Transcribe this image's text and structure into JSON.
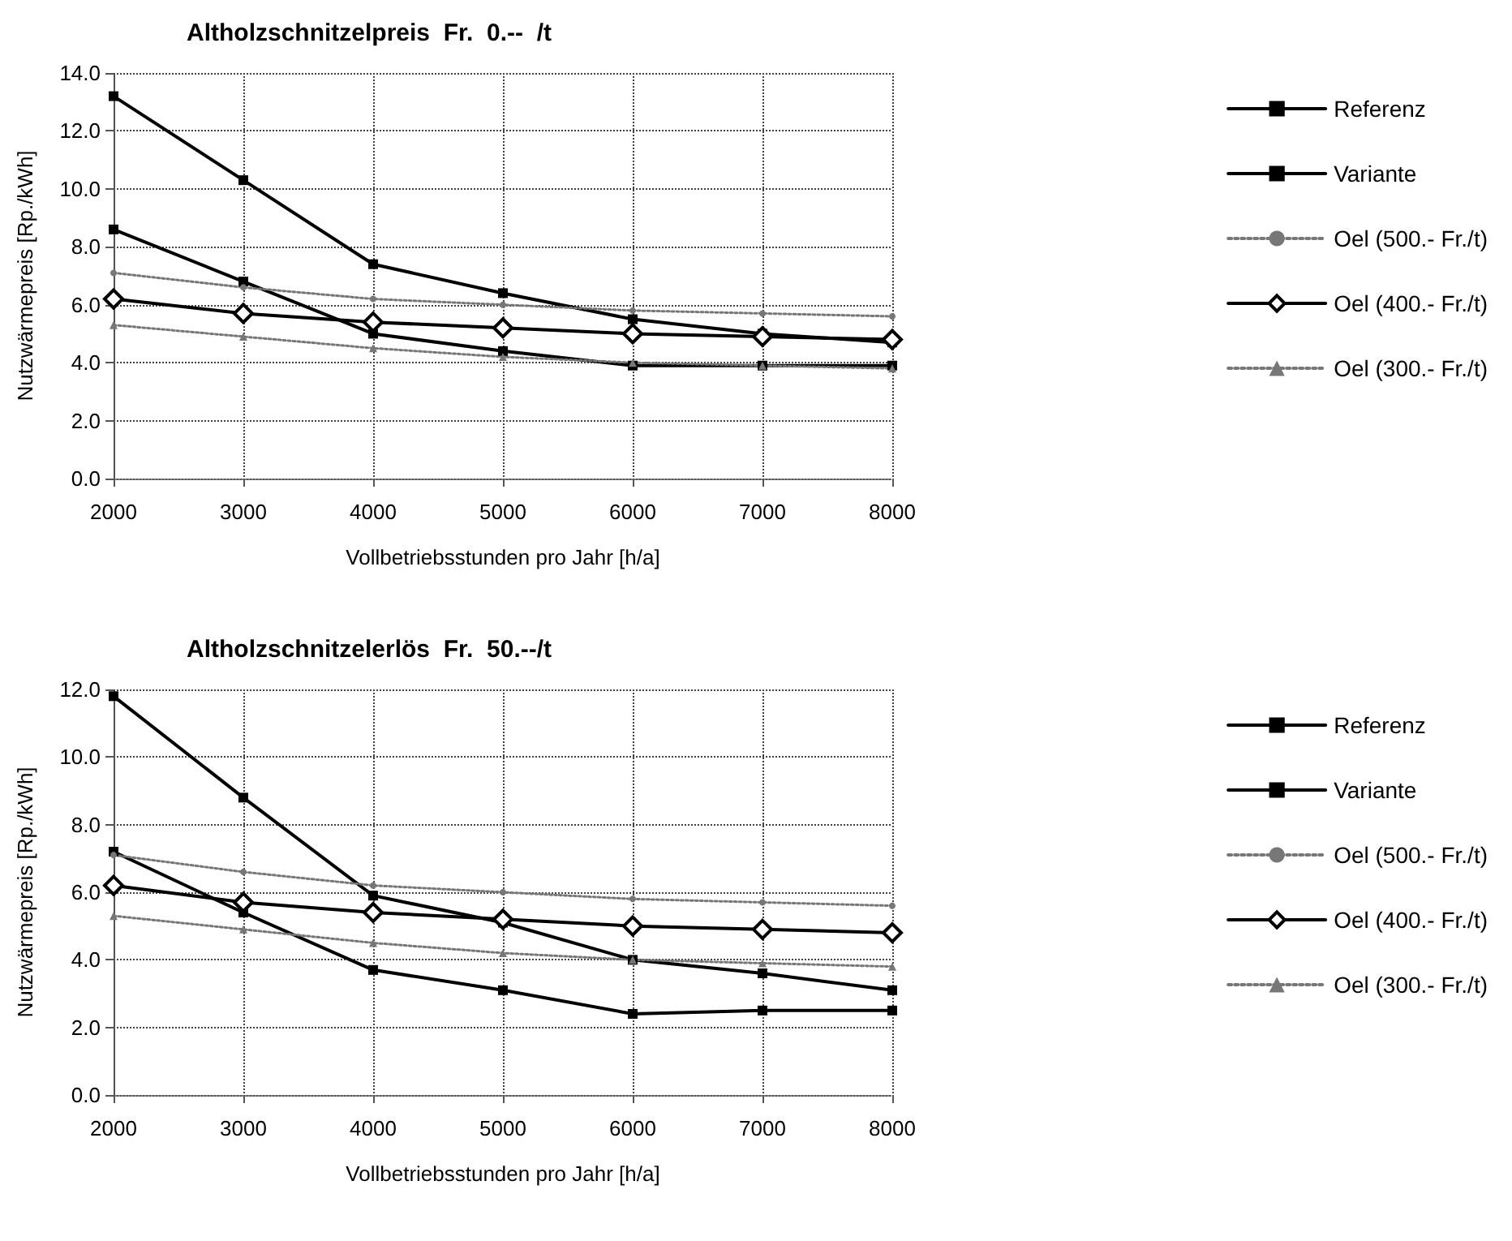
{
  "chart_data": [
    {
      "type": "line",
      "title": "Altholzschnitzelpreis  Fr.  0.--  /t",
      "xlabel": "Vollbetriebsstunden pro Jahr [h/a]",
      "ylabel": "Nutzwärmepreis [Rp./kWh]",
      "x": [
        2000,
        3000,
        4000,
        5000,
        6000,
        7000,
        8000
      ],
      "xlim": [
        2000,
        8000
      ],
      "xticks": [
        2000,
        3000,
        4000,
        5000,
        6000,
        7000,
        8000
      ],
      "ylim": [
        0,
        14
      ],
      "yticks": [
        {
          "value": 0,
          "label": "0.0"
        },
        {
          "value": 2,
          "label": "2.0"
        },
        {
          "value": 4,
          "label": "4.0"
        },
        {
          "value": 6,
          "label": "6.0"
        },
        {
          "value": 8,
          "label": "8.0"
        },
        {
          "value": 10,
          "label": "10.0"
        },
        {
          "value": 12,
          "label": "12.0"
        },
        {
          "value": 14,
          "label": "14.0"
        }
      ],
      "grid": true,
      "legend": "right",
      "series": [
        {
          "name": "Referenz",
          "color": "#000000",
          "marker": "square",
          "line_style": "solid",
          "values": [
            13.2,
            10.3,
            7.4,
            6.4,
            5.5,
            5.0,
            4.7
          ]
        },
        {
          "name": "Variante",
          "color": "#000000",
          "marker": "square",
          "line_style": "solid",
          "values": [
            8.6,
            6.8,
            5.0,
            4.4,
            3.9,
            3.9,
            3.9
          ]
        },
        {
          "name": "Oel (500.- Fr./t)",
          "color": "#777777",
          "marker": "circle",
          "line_style": "dotted",
          "values": [
            7.1,
            6.6,
            6.2,
            6.0,
            5.8,
            5.7,
            5.6
          ]
        },
        {
          "name": "Oel (400.- Fr./t)",
          "color": "#000000",
          "marker": "diamond",
          "line_style": "solid",
          "values": [
            6.2,
            5.7,
            5.4,
            5.2,
            5.0,
            4.9,
            4.8
          ]
        },
        {
          "name": "Oel (300.- Fr./t)",
          "color": "#777777",
          "marker": "triangle",
          "line_style": "dotted",
          "values": [
            5.3,
            4.9,
            4.5,
            4.2,
            4.0,
            3.9,
            3.8
          ]
        }
      ]
    },
    {
      "type": "line",
      "title": "Altholzschnitzelerlös  Fr.  50.--/t",
      "xlabel": "Vollbetriebsstunden pro Jahr [h/a]",
      "ylabel": "Nutzwärmepreis [Rp./kWh]",
      "x": [
        2000,
        3000,
        4000,
        5000,
        6000,
        7000,
        8000
      ],
      "xlim": [
        2000,
        8000
      ],
      "xticks": [
        2000,
        3000,
        4000,
        5000,
        6000,
        7000,
        8000
      ],
      "ylim": [
        0,
        12
      ],
      "yticks": [
        {
          "value": 0,
          "label": "0.0"
        },
        {
          "value": 2,
          "label": "2.0"
        },
        {
          "value": 4,
          "label": "4.0"
        },
        {
          "value": 6,
          "label": "6.0"
        },
        {
          "value": 8,
          "label": "8.0"
        },
        {
          "value": 10,
          "label": "10.0"
        },
        {
          "value": 12,
          "label": "12.0"
        }
      ],
      "grid": true,
      "legend": "right",
      "series": [
        {
          "name": "Referenz",
          "color": "#000000",
          "marker": "square",
          "line_style": "solid",
          "values": [
            11.8,
            8.8,
            5.9,
            5.1,
            4.0,
            3.6,
            3.1
          ]
        },
        {
          "name": "Variante",
          "color": "#000000",
          "marker": "square",
          "line_style": "solid",
          "values": [
            7.2,
            5.4,
            3.7,
            3.1,
            2.4,
            2.5,
            2.5
          ]
        },
        {
          "name": "Oel (500.- Fr./t)",
          "color": "#777777",
          "marker": "circle",
          "line_style": "dotted",
          "values": [
            7.1,
            6.6,
            6.2,
            6.0,
            5.8,
            5.7,
            5.6
          ]
        },
        {
          "name": "Oel (400.- Fr./t)",
          "color": "#000000",
          "marker": "diamond",
          "line_style": "solid",
          "values": [
            6.2,
            5.7,
            5.4,
            5.2,
            5.0,
            4.9,
            4.8
          ]
        },
        {
          "name": "Oel (300.- Fr./t)",
          "color": "#777777",
          "marker": "triangle",
          "line_style": "dotted",
          "values": [
            5.3,
            4.9,
            4.5,
            4.2,
            4.0,
            3.9,
            3.8
          ]
        }
      ]
    }
  ]
}
